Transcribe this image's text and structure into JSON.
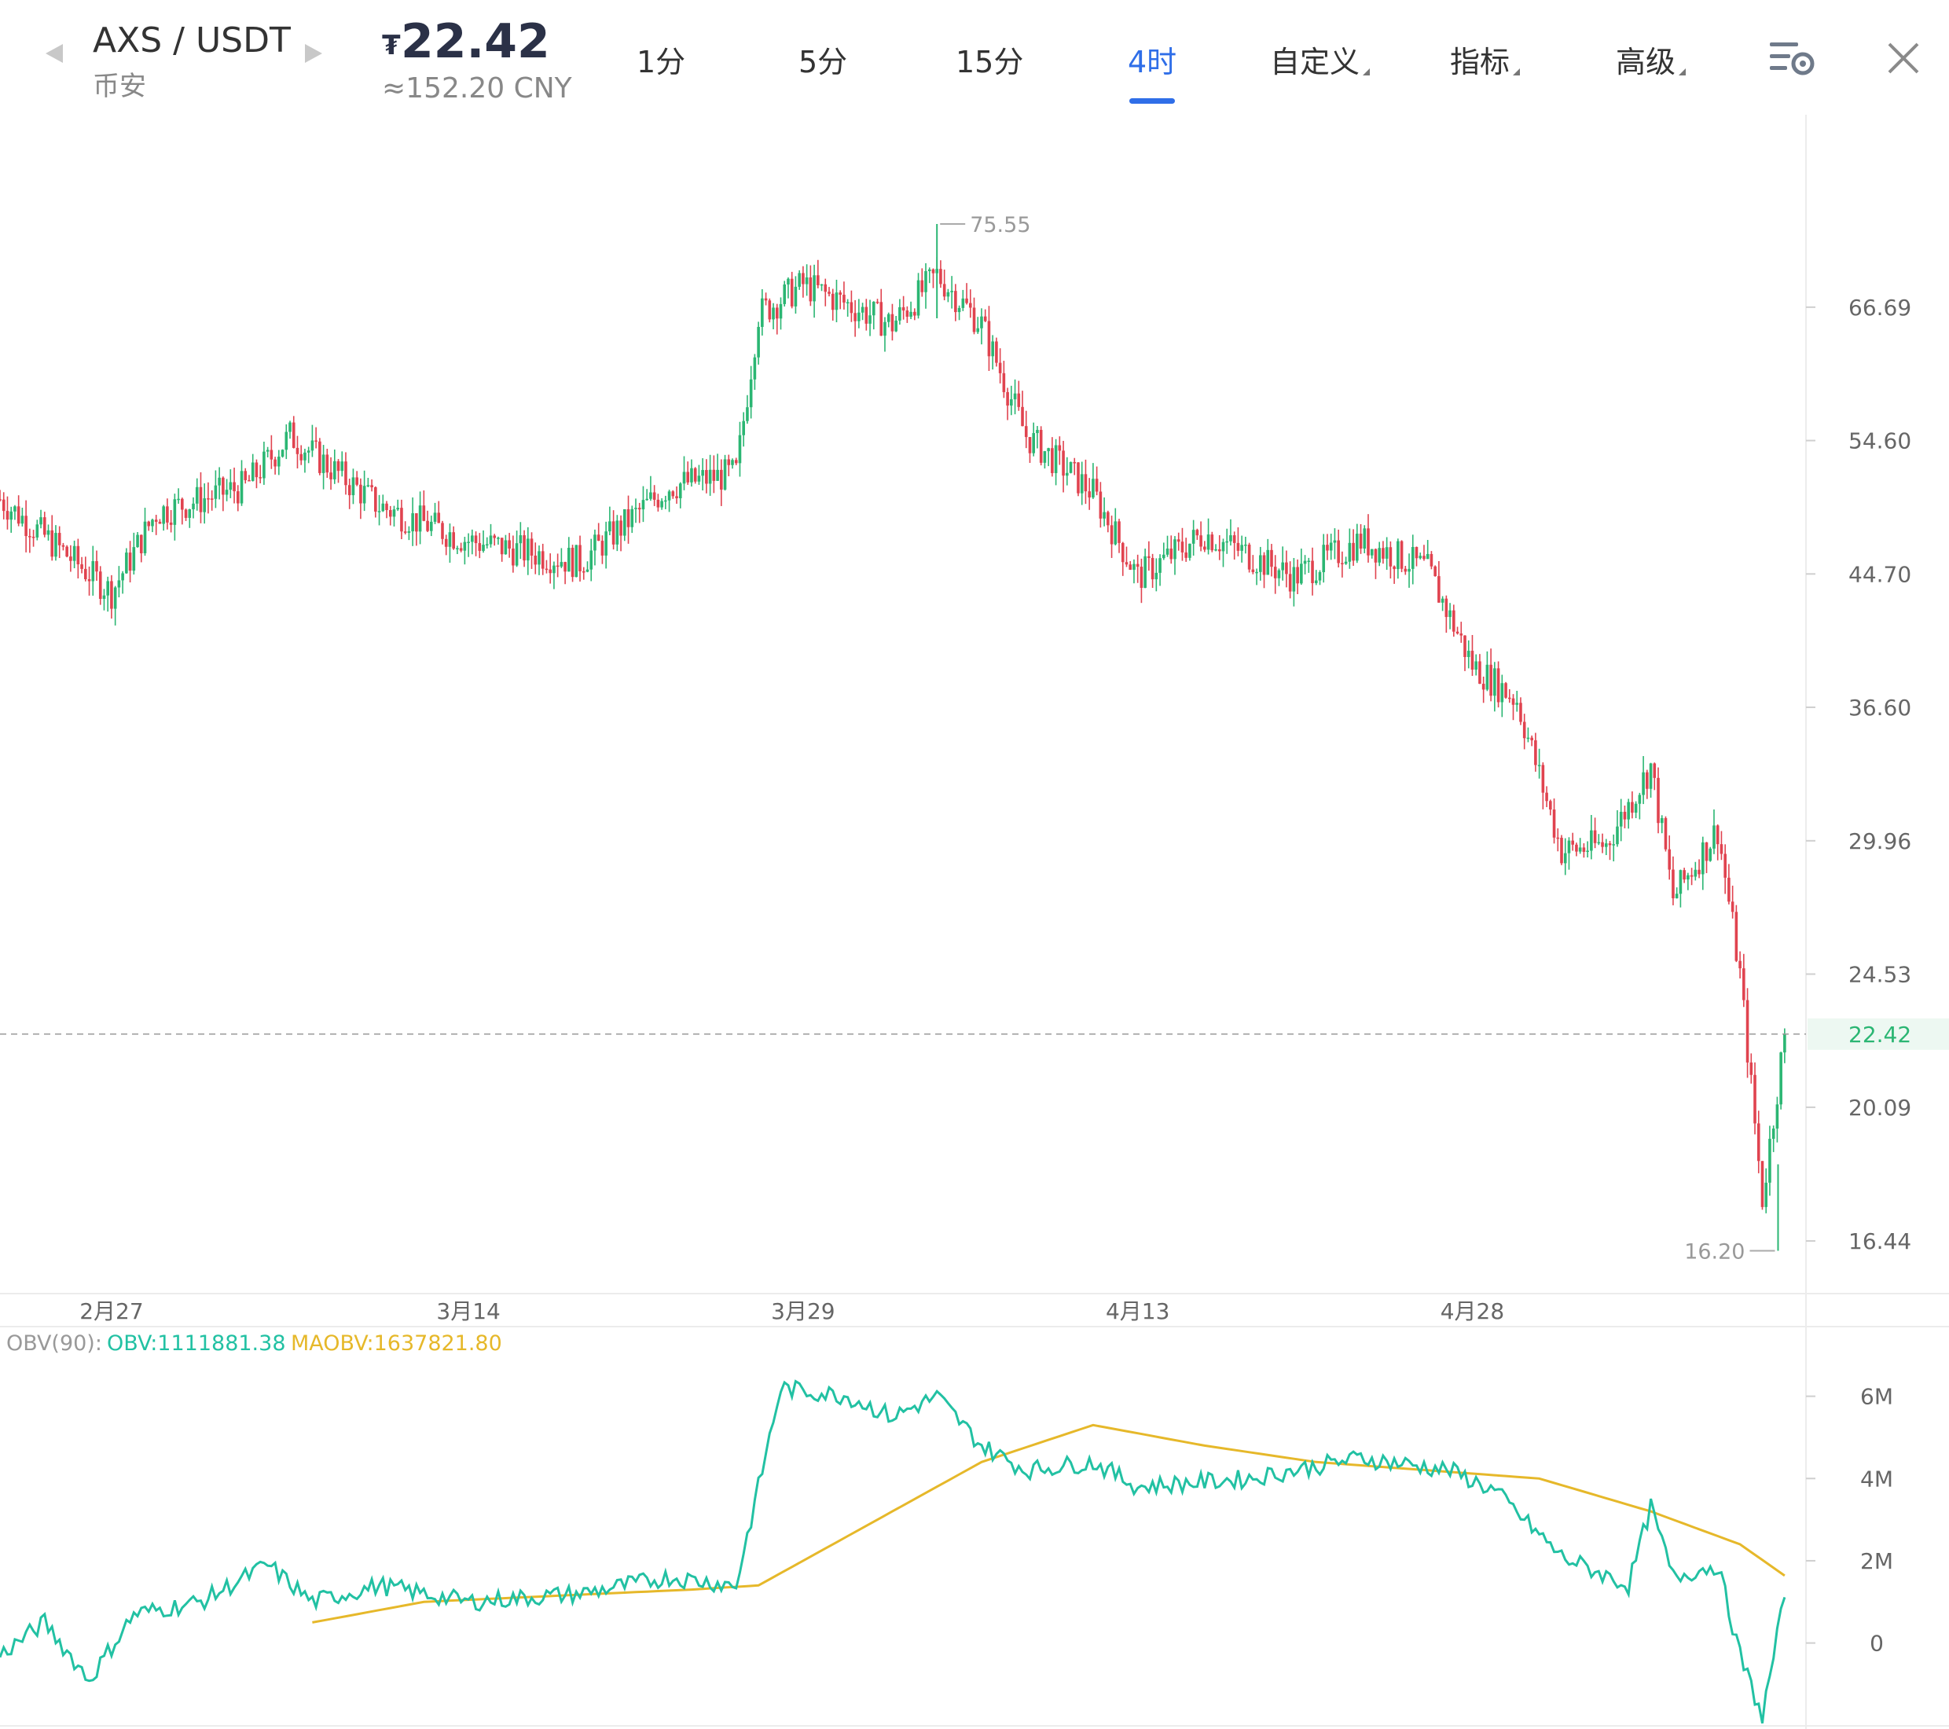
{
  "header": {
    "pair": "AXS / USDT",
    "exchange": "币安",
    "price_symbol": "₮",
    "price": "22.42",
    "price_cny": "≈152.20 CNY",
    "tabs": [
      {
        "label": "1分",
        "active": false,
        "dropdown": false
      },
      {
        "label": "5分",
        "active": false,
        "dropdown": false
      },
      {
        "label": "15分",
        "active": false,
        "dropdown": false
      },
      {
        "label": "4时",
        "active": true,
        "dropdown": false
      },
      {
        "label": "自定义",
        "active": false,
        "dropdown": true
      },
      {
        "label": "指标",
        "active": false,
        "dropdown": true
      },
      {
        "label": "高级",
        "active": false,
        "dropdown": true
      }
    ],
    "icons": [
      "chart-settings-icon",
      "close-icon"
    ],
    "accent_color": "#2f6ee8"
  },
  "chart_data": [
    {
      "type": "candlestick",
      "timeframe": "4时",
      "price_axis": {
        "scale": "log",
        "tick_labels": [
          "66.69",
          "54.60",
          "44.70",
          "36.60",
          "29.96",
          "24.53",
          "20.09",
          "16.44"
        ],
        "tick_values": [
          66.69,
          54.6,
          44.7,
          36.6,
          29.96,
          24.53,
          20.09,
          16.44
        ],
        "range": [
          15.3,
          89
        ]
      },
      "time_axis": {
        "labels": [
          "2月27",
          "3月14",
          "3月29",
          "4月13",
          "4月28"
        ],
        "range_days_shown_as_dates": [
          "2月22",
          "5月12"
        ]
      },
      "current_price": {
        "label": "22.42",
        "value": 22.42
      },
      "high_marker": {
        "label": "75.55",
        "value": 75.55,
        "date": "4月4"
      },
      "low_marker": {
        "label": "16.20",
        "value": 16.2,
        "date": "5月11"
      },
      "approx_close_path": [
        {
          "date": "2月22",
          "price": 50.0
        },
        {
          "date": "2月25",
          "price": 46.0
        },
        {
          "date": "2月27",
          "price": 43.5
        },
        {
          "date": "2月29",
          "price": 49.0
        },
        {
          "date": "3月4",
          "price": 51.0
        },
        {
          "date": "3月6",
          "price": 55.0
        },
        {
          "date": "3月10",
          "price": 49.5
        },
        {
          "date": "3月14",
          "price": 47.0
        },
        {
          "date": "3月19",
          "price": 45.5
        },
        {
          "date": "3月23",
          "price": 51.0
        },
        {
          "date": "3月26",
          "price": 52.0
        },
        {
          "date": "3月27",
          "price": 66.0
        },
        {
          "date": "3月29",
          "price": 69.0
        },
        {
          "date": "4月2",
          "price": 65.0
        },
        {
          "date": "4月4",
          "price": 70.0
        },
        {
          "date": "4月6",
          "price": 65.0
        },
        {
          "date": "4月8",
          "price": 55.0
        },
        {
          "date": "4月11",
          "price": 50.5
        },
        {
          "date": "4月13",
          "price": 44.5
        },
        {
          "date": "4月16",
          "price": 47.5
        },
        {
          "date": "4月20",
          "price": 44.5
        },
        {
          "date": "4月23",
          "price": 47.0
        },
        {
          "date": "4月26",
          "price": 45.0
        },
        {
          "date": "4月28",
          "price": 39.0
        },
        {
          "date": "4月30",
          "price": 37.0
        },
        {
          "date": "5月2",
          "price": 29.5
        },
        {
          "date": "5月4",
          "price": 29.8
        },
        {
          "date": "5月6",
          "price": 33.5
        },
        {
          "date": "5月7",
          "price": 27.5
        },
        {
          "date": "5月9",
          "price": 30.5
        },
        {
          "date": "5月10",
          "price": 24.5
        },
        {
          "date": "5月11",
          "price": 17.5
        },
        {
          "date": "5月12",
          "price": 22.42
        }
      ],
      "colors": {
        "up": "#2bb673",
        "down": "#e0434f"
      }
    },
    {
      "type": "line",
      "indicator_label": "OBV(90):",
      "legend": [
        {
          "label": "OBV:1111881.38",
          "color": "#22c1a3"
        },
        {
          "label": "MAOBV:1637821.80",
          "color": "#e6b82a"
        }
      ],
      "y_axis": {
        "tick_labels": [
          "6M",
          "4M",
          "2M",
          "0"
        ],
        "tick_values": [
          6000000,
          4000000,
          2000000,
          0
        ],
        "range": [
          -1900000,
          6700000
        ]
      },
      "series": [
        {
          "name": "OBV",
          "color": "#22c1a3",
          "points": [
            {
              "date": "2月22",
              "value": -300000
            },
            {
              "date": "2月24",
              "value": 500000
            },
            {
              "date": "2月26",
              "value": -900000
            },
            {
              "date": "2月28",
              "value": 700000
            },
            {
              "date": "3月2",
              "value": 1000000
            },
            {
              "date": "3月5",
              "value": 1900000
            },
            {
              "date": "3月7",
              "value": 1000000
            },
            {
              "date": "3月10",
              "value": 1400000
            },
            {
              "date": "3月14",
              "value": 1000000
            },
            {
              "date": "3月19",
              "value": 1200000
            },
            {
              "date": "3月23",
              "value": 1600000
            },
            {
              "date": "3月26",
              "value": 1400000
            },
            {
              "date": "3月28",
              "value": 6200000
            },
            {
              "date": "3月31",
              "value": 6000000
            },
            {
              "date": "4月2",
              "value": 5500000
            },
            {
              "date": "4月4",
              "value": 6000000
            },
            {
              "date": "4月6",
              "value": 4800000
            },
            {
              "date": "4月8",
              "value": 4200000
            },
            {
              "date": "4月11",
              "value": 4400000
            },
            {
              "date": "4月13",
              "value": 3800000
            },
            {
              "date": "4月18",
              "value": 4000000
            },
            {
              "date": "4月23",
              "value": 4500000
            },
            {
              "date": "4月27",
              "value": 4200000
            },
            {
              "date": "4月29",
              "value": 3700000
            },
            {
              "date": "5月2",
              "value": 2100000
            },
            {
              "date": "5月5",
              "value": 1400000
            },
            {
              "date": "5月6",
              "value": 3300000
            },
            {
              "date": "5月7",
              "value": 1600000
            },
            {
              "date": "5月9",
              "value": 1900000
            },
            {
              "date": "5月10",
              "value": -300000
            },
            {
              "date": "5月11",
              "value": -1800000
            },
            {
              "date": "5月12",
              "value": 1111881
            }
          ]
        },
        {
          "name": "MAOBV",
          "color": "#e6b82a",
          "points": [
            {
              "date": "3月7",
              "value": 500000
            },
            {
              "date": "3月12",
              "value": 1000000
            },
            {
              "date": "3月18",
              "value": 1150000
            },
            {
              "date": "3月24",
              "value": 1300000
            },
            {
              "date": "3月27",
              "value": 1400000
            },
            {
              "date": "4月2",
              "value": 3200000
            },
            {
              "date": "4月6",
              "value": 4400000
            },
            {
              "date": "4月11",
              "value": 5300000
            },
            {
              "date": "4月16",
              "value": 4800000
            },
            {
              "date": "4月21",
              "value": 4400000
            },
            {
              "date": "4月26",
              "value": 4200000
            },
            {
              "date": "5月1",
              "value": 4000000
            },
            {
              "date": "5月6",
              "value": 3200000
            },
            {
              "date": "5月10",
              "value": 2400000
            },
            {
              "date": "5月12",
              "value": 1637822
            }
          ]
        }
      ]
    }
  ]
}
